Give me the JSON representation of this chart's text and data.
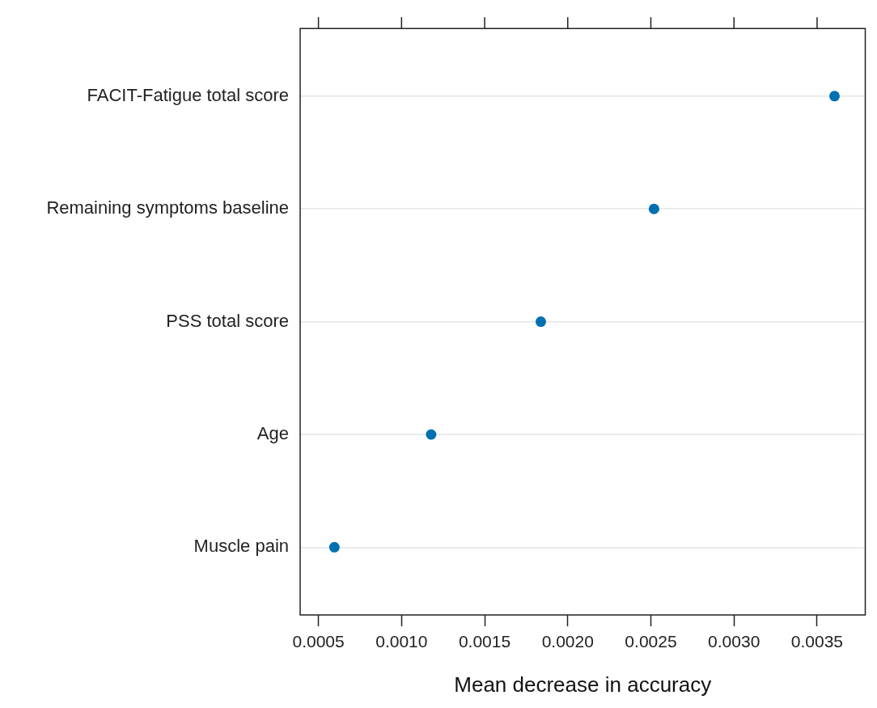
{
  "chart_data": {
    "type": "scatter",
    "orientation": "horizontal",
    "xlabel": "Mean decrease in accuracy",
    "categories": [
      "FACIT-Fatigue total score",
      "Remaining symptoms baseline",
      "PSS total score",
      "Age",
      "Muscle pain"
    ],
    "values": [
      0.003605,
      0.002519,
      0.001838,
      0.001178,
      0.000596
    ],
    "color": "#0071b0",
    "marker": "circle",
    "grid": "y",
    "xlim": [
      0.00039,
      0.00379
    ],
    "xticks": [
      {
        "value": 0.0005,
        "label": "0.0005"
      },
      {
        "value": 0.001,
        "label": "0.0010"
      },
      {
        "value": 0.0015,
        "label": "0.0015"
      },
      {
        "value": 0.002,
        "label": "0.0020"
      },
      {
        "value": 0.0025,
        "label": "0.0025"
      },
      {
        "value": 0.003,
        "label": "0.0030"
      },
      {
        "value": 0.0035,
        "label": "0.0035"
      }
    ]
  }
}
